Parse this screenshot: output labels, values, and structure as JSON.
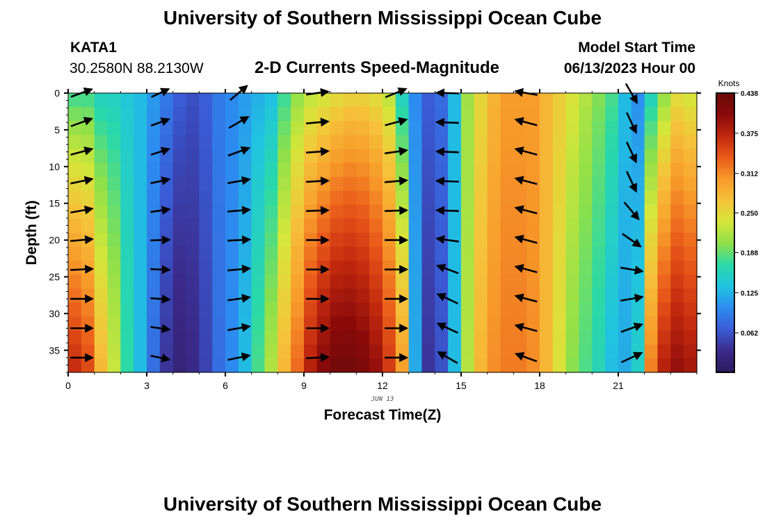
{
  "header": {
    "title": "University of Southern Mississippi Ocean Cube",
    "station": "KATA1",
    "location": "30.2580N  88.2130W",
    "subtitle": "2-D Currents Speed-Magnitude",
    "model_start_label": "Model Start Time",
    "model_start_value": "06/13/2023 Hour 00"
  },
  "footer": {
    "title": "University of Southern Mississippi Ocean Cube"
  },
  "chart_data": {
    "type": "heatmap",
    "title": "2-D Currents Speed-Magnitude",
    "xlabel": "Forecast Time(Z)",
    "ylabel": "Depth (ft)",
    "x_date_label": "JUN 13",
    "xlim": [
      0,
      24
    ],
    "ylim": [
      38,
      0
    ],
    "x_ticks": [
      0,
      3,
      6,
      9,
      12,
      15,
      18,
      21
    ],
    "y_ticks": [
      0,
      5,
      10,
      15,
      20,
      25,
      30,
      35
    ],
    "colorbar": {
      "unit": "Knots",
      "range": [
        0.0,
        0.438
      ],
      "ticks": [
        "0.438",
        "0.375",
        "0.312",
        "0.250",
        "0.188",
        "0.125",
        "0.062"
      ],
      "colormap": [
        "#2a1a5e",
        "#3b2a8a",
        "#3a5cd6",
        "#2d8cf0",
        "#20c4e0",
        "#2ad9a8",
        "#8ee04a",
        "#d6e63a",
        "#f6c23a",
        "#f79a2a",
        "#ea5a1a",
        "#c0280e",
        "#8a0a0a",
        "#6a0a0a"
      ]
    },
    "time_hours": [
      0,
      0.5,
      1,
      1.5,
      2,
      2.5,
      3,
      3.5,
      4,
      4.5,
      5,
      5.5,
      6,
      6.5,
      7,
      7.5,
      8,
      8.5,
      9,
      9.5,
      10,
      10.5,
      11,
      11.5,
      12,
      12.5,
      13,
      13.5,
      14,
      14.5,
      15,
      15.5,
      16,
      16.5,
      17,
      17.5,
      18,
      18.5,
      19,
      19.5,
      20,
      20.5,
      21,
      21.5,
      22,
      22.5,
      23,
      23.5
    ],
    "depth_bins_ft": [
      0,
      4,
      8,
      12,
      16,
      20,
      24,
      28,
      32,
      36
    ],
    "speed_profiles_knots": {
      "near_surface": [
        0.17,
        0.17,
        0.15,
        0.15,
        0.14,
        0.13,
        0.11,
        0.09,
        0.07,
        0.06,
        0.07,
        0.09,
        0.1,
        0.11,
        0.12,
        0.13,
        0.17,
        0.2,
        0.22,
        0.23,
        0.24,
        0.25,
        0.25,
        0.24,
        0.22,
        0.15,
        0.1,
        0.07,
        0.08,
        0.13,
        0.21,
        0.25,
        0.28,
        0.3,
        0.3,
        0.3,
        0.28,
        0.26,
        0.24,
        0.22,
        0.2,
        0.18,
        0.13,
        0.1,
        0.15,
        0.2,
        0.24,
        0.23
      ],
      "bottom": [
        0.37,
        0.35,
        0.28,
        0.23,
        0.17,
        0.13,
        0.08,
        0.04,
        0.02,
        0.03,
        0.05,
        0.08,
        0.1,
        0.13,
        0.18,
        0.22,
        0.28,
        0.33,
        0.38,
        0.41,
        0.43,
        0.43,
        0.42,
        0.4,
        0.36,
        0.3,
        0.12,
        0.04,
        0.06,
        0.13,
        0.22,
        0.28,
        0.31,
        0.32,
        0.32,
        0.31,
        0.28,
        0.24,
        0.2,
        0.18,
        0.16,
        0.13,
        0.12,
        0.15,
        0.32,
        0.38,
        0.4,
        0.39
      ]
    },
    "vectors": [
      {
        "t": 0.5,
        "angles_deg": [
          20,
          20,
          15,
          12,
          10,
          5,
          3,
          0,
          0,
          0
        ],
        "lengths": [
          0.7,
          0.7,
          0.7,
          0.7,
          0.7,
          0.7,
          0.7,
          0.7,
          0.7,
          0.7
        ]
      },
      {
        "t": 3.5,
        "angles_deg": [
          25,
          20,
          18,
          12,
          8,
          2,
          -2,
          -4,
          -8,
          -12
        ],
        "lengths": [
          0.6,
          0.6,
          0.6,
          0.6,
          0.6,
          0.6,
          0.6,
          0.6,
          0.6,
          0.6
        ]
      },
      {
        "t": 6.5,
        "angles_deg": [
          40,
          30,
          20,
          10,
          5,
          3,
          5,
          8,
          10,
          12
        ],
        "lengths": [
          0.7,
          0.7,
          0.7,
          0.7,
          0.7,
          0.7,
          0.7,
          0.7,
          0.7,
          0.7
        ]
      },
      {
        "t": 9.5,
        "angles_deg": [
          8,
          5,
          4,
          3,
          2,
          0,
          0,
          0,
          0,
          3
        ],
        "lengths": [
          0.7,
          0.7,
          0.7,
          0.7,
          0.7,
          0.7,
          0.7,
          0.7,
          0.7,
          0.7
        ]
      },
      {
        "t": 12.5,
        "angles_deg": [
          22,
          15,
          8,
          5,
          2,
          0,
          0,
          0,
          0,
          0
        ],
        "lengths": [
          0.7,
          0.7,
          0.7,
          0.7,
          0.7,
          0.7,
          0.7,
          0.7,
          0.7,
          0.7
        ]
      },
      {
        "t": 14.5,
        "angles_deg": [
          178,
          178,
          178,
          178,
          178,
          172,
          160,
          155,
          155,
          150
        ],
        "lengths": [
          0.7,
          0.7,
          0.7,
          0.7,
          0.7,
          0.7,
          0.7,
          0.7,
          0.7,
          0.7
        ]
      },
      {
        "t": 17.5,
        "angles_deg": [
          170,
          165,
          165,
          165,
          165,
          165,
          165,
          165,
          165,
          160
        ],
        "lengths": [
          0.7,
          0.7,
          0.7,
          0.7,
          0.7,
          0.7,
          0.7,
          0.7,
          0.7,
          0.7
        ]
      },
      {
        "t": 21.5,
        "angles_deg": [
          -60,
          -65,
          -65,
          -65,
          -50,
          -35,
          -10,
          10,
          20,
          25
        ],
        "lengths": [
          0.7,
          0.7,
          0.7,
          0.7,
          0.7,
          0.7,
          0.7,
          0.7,
          0.7,
          0.7
        ]
      }
    ]
  }
}
